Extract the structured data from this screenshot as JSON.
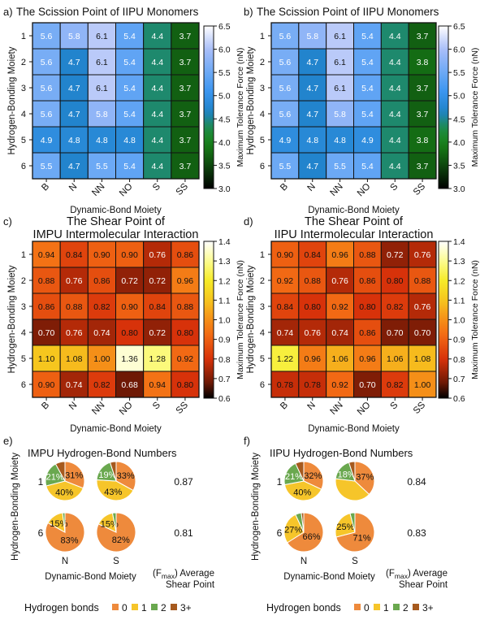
{
  "chart_data": [
    {
      "type": "heatmap",
      "panel_label": "a)",
      "title": "The Scission Point of IIPU Monomers",
      "xlabel": "Dynamic-Bond Moiety",
      "ylabel": "Hydrogen-Bonding Moiety",
      "x_categories": [
        "B",
        "N",
        "NN",
        "NO",
        "S",
        "SS"
      ],
      "y_categories": [
        "1",
        "2",
        "3",
        "4",
        "5",
        "6"
      ],
      "values": [
        [
          5.6,
          5.8,
          6.1,
          5.4,
          4.4,
          3.7
        ],
        [
          5.6,
          4.7,
          6.1,
          5.4,
          4.4,
          3.7
        ],
        [
          5.6,
          4.7,
          6.1,
          5.4,
          4.4,
          3.7
        ],
        [
          5.6,
          4.7,
          5.8,
          5.4,
          4.4,
          3.7
        ],
        [
          4.9,
          4.8,
          4.8,
          4.8,
          4.4,
          3.7
        ],
        [
          5.5,
          4.7,
          5.5,
          5.4,
          4.4,
          3.7
        ]
      ],
      "cell_labels": [
        [
          "5.6",
          "5.8",
          "6.1",
          "5.4",
          "4.4",
          "3.7"
        ],
        [
          "5.6",
          "4.7",
          "6.1",
          "5.4",
          "4.4",
          "3.7"
        ],
        [
          "5.6",
          "4.7",
          "6.1",
          "5.4",
          "4.4",
          "3.7"
        ],
        [
          "5.6",
          "4.7",
          "5.8",
          "5.4",
          "4.4",
          "3.7"
        ],
        [
          "4.9",
          "4.8",
          "4.8",
          "4.8",
          "4.4",
          "3.7"
        ],
        [
          "5.5",
          "4.7",
          "5.5",
          "5.4",
          "4.4",
          "3.7"
        ]
      ],
      "colorbar": {
        "label": "Maximum Tolerance Force (nN)",
        "range": [
          3.0,
          6.5
        ],
        "ticks": [
          "3.0",
          "3.5",
          "4.0",
          "4.5",
          "5.0",
          "5.5",
          "6.0",
          "6.5"
        ],
        "colormap": "black-green-blue-white"
      }
    },
    {
      "type": "heatmap",
      "panel_label": "b)",
      "title": "The Scission Point of IIPU Monomers",
      "xlabel": "Dynamic-Bond Moiety",
      "ylabel": "Hydrogen-Bonding Moiety",
      "x_categories": [
        "B",
        "N",
        "NN",
        "NO",
        "S",
        "SS"
      ],
      "y_categories": [
        "1",
        "2",
        "3",
        "4",
        "5",
        "6"
      ],
      "values": [
        [
          5.6,
          5.8,
          6.1,
          5.4,
          4.4,
          3.7
        ],
        [
          5.6,
          4.7,
          6.1,
          5.4,
          4.4,
          3.8
        ],
        [
          5.6,
          4.7,
          6.1,
          5.4,
          4.4,
          3.7
        ],
        [
          5.6,
          4.7,
          5.8,
          5.4,
          4.4,
          3.7
        ],
        [
          4.9,
          4.8,
          4.8,
          4.9,
          4.4,
          3.8
        ],
        [
          5.5,
          4.7,
          5.5,
          5.4,
          4.4,
          3.7
        ]
      ],
      "cell_labels": [
        [
          "5.6",
          "5.8",
          "6.1",
          "5.4",
          "4.4",
          "3.7"
        ],
        [
          "5.6",
          "4.7",
          "6.1",
          "5.4",
          "4.4",
          "3.8"
        ],
        [
          "5.6",
          "4.7",
          "6.1",
          "5.4",
          "4.4",
          "3.7"
        ],
        [
          "5.6",
          "4.7",
          "5.8",
          "5.4",
          "4.4",
          "3.7"
        ],
        [
          "4.9",
          "4.8",
          "4.8",
          "4.9",
          "4.4",
          "3.8"
        ],
        [
          "5.5",
          "4.7",
          "5.5",
          "5.4",
          "4.4",
          "3.7"
        ]
      ],
      "colorbar": {
        "label": "Maximum Tolerance Force (nN)",
        "range": [
          3.0,
          6.5
        ],
        "ticks": [
          "3.0",
          "3.5",
          "4.0",
          "4.5",
          "5.0",
          "5.5",
          "6.0",
          "6.5"
        ],
        "colormap": "black-green-blue-white"
      }
    },
    {
      "type": "heatmap",
      "panel_label": "c)",
      "title": "The Shear Point of IMPU Intermolecular Interaction",
      "title_lines": [
        "The Shear Point of",
        "IMPU Intermolecular Interaction"
      ],
      "xlabel": "Dynamic-Bond Moiety",
      "ylabel": "Hydrogen-Bonding Moiety",
      "x_categories": [
        "B",
        "N",
        "NN",
        "NO",
        "S",
        "SS"
      ],
      "y_categories": [
        "1",
        "2",
        "3",
        "4",
        "5",
        "6"
      ],
      "values": [
        [
          0.94,
          0.84,
          0.9,
          0.9,
          0.76,
          0.86
        ],
        [
          0.88,
          0.76,
          0.86,
          0.72,
          0.72,
          0.96
        ],
        [
          0.86,
          0.88,
          0.82,
          0.9,
          0.84,
          0.88
        ],
        [
          0.7,
          0.76,
          0.74,
          0.8,
          0.72,
          0.8
        ],
        [
          1.1,
          1.08,
          1.0,
          1.36,
          1.28,
          0.92
        ],
        [
          0.9,
          0.74,
          0.82,
          0.68,
          0.94,
          0.8
        ]
      ],
      "cell_labels": [
        [
          "0.94",
          "0.84",
          "0.90",
          "0.90",
          "0.76",
          "0.86"
        ],
        [
          "0.88",
          "0.76",
          "0.86",
          "0.72",
          "0.72",
          "0.96"
        ],
        [
          "0.86",
          "0.88",
          "0.82",
          "0.90",
          "0.84",
          "0.88"
        ],
        [
          "0.70",
          "0.76",
          "0.74",
          "0.80",
          "0.72",
          "0.80"
        ],
        [
          "1.10",
          "1.08",
          "1.00",
          "1.36",
          "1.28",
          "0.92"
        ],
        [
          "0.90",
          "0.74",
          "0.82",
          "0.68",
          "0.94",
          "0.80"
        ]
      ],
      "colorbar": {
        "label": "Maximum Tolerance Force (nN)",
        "range": [
          0.6,
          1.4
        ],
        "ticks": [
          "0.6",
          "0.7",
          "0.8",
          "0.9",
          "1.0",
          "1.1",
          "1.2",
          "1.3",
          "1.4"
        ],
        "colormap": "black-red-orange-yellow-white"
      }
    },
    {
      "type": "heatmap",
      "panel_label": "d)",
      "title": "The Shear Point of IIPU Intermolecular Interaction",
      "title_lines": [
        "The Shear Point of",
        "IIPU Intermolecular Interaction"
      ],
      "xlabel": "Dynamic-Bond Moiety",
      "ylabel": "Hydrogen-Bonding Moiety",
      "x_categories": [
        "B",
        "N",
        "NN",
        "NO",
        "S",
        "SS"
      ],
      "y_categories": [
        "1",
        "2",
        "3",
        "4",
        "5",
        "6"
      ],
      "values": [
        [
          0.9,
          0.84,
          0.96,
          0.88,
          0.72,
          0.76
        ],
        [
          0.92,
          0.88,
          0.76,
          0.86,
          0.8,
          0.88
        ],
        [
          0.84,
          0.8,
          0.92,
          0.8,
          0.82,
          0.76
        ],
        [
          0.74,
          0.76,
          0.74,
          0.86,
          0.7,
          0.7
        ],
        [
          1.22,
          0.96,
          1.06,
          0.96,
          1.06,
          1.08
        ],
        [
          0.78,
          0.78,
          0.92,
          0.7,
          0.82,
          1.0
        ]
      ],
      "cell_labels": [
        [
          "0.90",
          "0.84",
          "0.96",
          "0.88",
          "0.72",
          "0.76"
        ],
        [
          "0.92",
          "0.88",
          "0.76",
          "0.86",
          "0.80",
          "0.88"
        ],
        [
          "0.84",
          "0.80",
          "0.92",
          "0.80",
          "0.82",
          "0.76"
        ],
        [
          "0.74",
          "0.76",
          "0.74",
          "0.86",
          "0.70",
          "0.70"
        ],
        [
          "1.22",
          "0.96",
          "1.06",
          "0.96",
          "1.06",
          "1.08"
        ],
        [
          "0.78",
          "0.78",
          "0.92",
          "0.70",
          "0.82",
          "1.00"
        ]
      ],
      "colorbar": {
        "label": "Maximum Tolerance Force (nN)",
        "range": [
          0.6,
          1.4
        ],
        "ticks": [
          "0.6",
          "0.7",
          "0.8",
          "0.9",
          "1.0",
          "1.1",
          "1.2",
          "1.3",
          "1.4"
        ],
        "colormap": "black-red-orange-yellow-white"
      }
    },
    {
      "type": "pie",
      "panel_label": "e)",
      "title": "IMPU Hydrogen-Bond Numbers",
      "xlabel": "Dynamic-Bond Moiety",
      "ylabel": "Hydrogen-Bonding Moiety",
      "columns": [
        "N",
        "S"
      ],
      "rows": [
        "1",
        "6"
      ],
      "average_label": "(F",
      "average_label_sub": "max",
      "average_label_rest": ") Average",
      "average_label_line2": "Shear Point",
      "average_values": [
        "0.87",
        "0.81"
      ],
      "pies": [
        [
          {
            "slices": [
              31,
              40,
              21,
              8
            ],
            "labels": [
              "31%",
              "40%",
              "21%",
              ""
            ]
          },
          {
            "slices": [
              33,
              43,
              19,
              5
            ],
            "labels": [
              "33%",
              "43%",
              "19%",
              ""
            ]
          }
        ],
        [
          {
            "slices": [
              83,
              15,
              2,
              0
            ],
            "labels": [
              "83%",
              "15%",
              "",
              ""
            ]
          },
          {
            "slices": [
              82,
              15,
              3,
              0
            ],
            "labels": [
              "82%",
              "15%",
              "",
              ""
            ]
          }
        ]
      ]
    },
    {
      "type": "pie",
      "panel_label": "f)",
      "title": "IIPU Hydrogen-Bond Numbers",
      "xlabel": "Dynamic-Bond Moiety",
      "ylabel": "Hydrogen-Bonding Moiety",
      "columns": [
        "N",
        "S"
      ],
      "rows": [
        "1",
        "6"
      ],
      "average_label": "(F",
      "average_label_sub": "max",
      "average_label_rest": ") Average",
      "average_label_line2": "Shear Point",
      "average_values": [
        "0.84",
        "0.83"
      ],
      "pies": [
        [
          {
            "slices": [
              32,
              40,
              21,
              7
            ],
            "labels": [
              "32%",
              "40%",
              "21%",
              ""
            ]
          },
          {
            "slices": [
              37,
              40,
              18,
              5
            ],
            "labels": [
              "37%",
              "",
              "18%",
              ""
            ]
          }
        ],
        [
          {
            "slices": [
              66,
              27,
              5,
              2
            ],
            "labels": [
              "66%",
              "27%",
              "",
              ""
            ]
          },
          {
            "slices": [
              71,
              25,
              4,
              0
            ],
            "labels": [
              "71%",
              "25%",
              "",
              ""
            ]
          }
        ]
      ]
    }
  ],
  "legend": {
    "title": "Hydrogen bonds",
    "entries": [
      "0",
      "1",
      "2",
      "3+"
    ],
    "colors": [
      "#ee8a3c",
      "#f6c52a",
      "#6aa84f",
      "#a65a1e"
    ]
  }
}
